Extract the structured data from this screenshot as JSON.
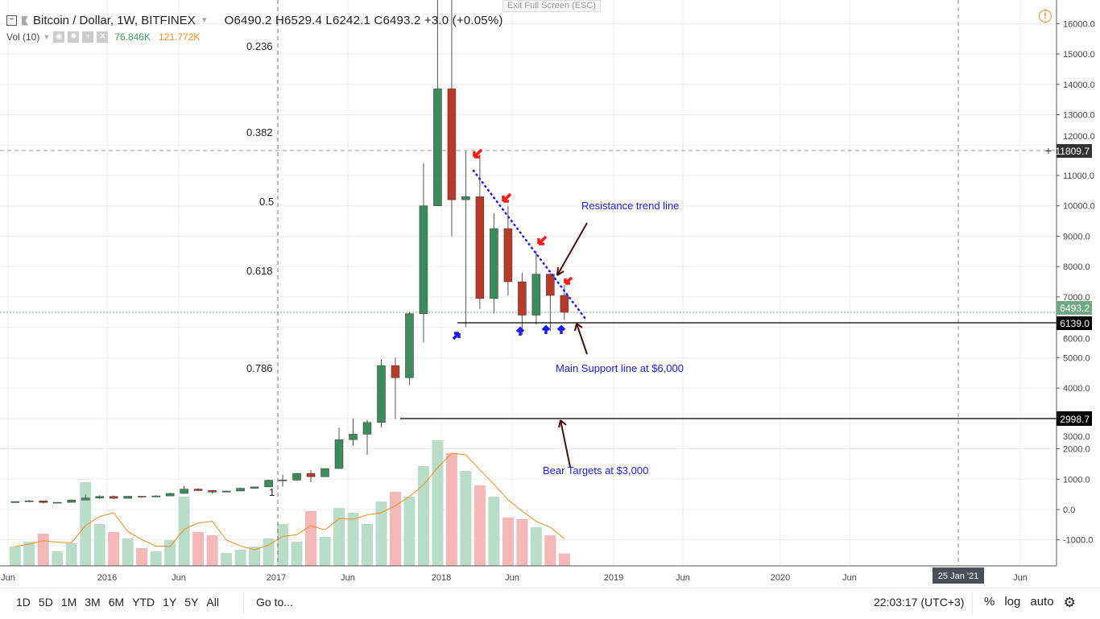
{
  "header": {
    "symbol": "Bitcoin / Dollar, 1W, BITFINEX",
    "ohlc": "O6490.2  H6529.4  L6242.1  C6493.2  +3.0 (+0.05%)",
    "volume_label": "Vol (10)",
    "volume_value": "76.846K",
    "volume_ma_value": "121.772K",
    "exit_fullscreen": "Exit Full Screen (ESC)"
  },
  "colors": {
    "up": "#3d8a5e",
    "down": "#b83a2a",
    "vol_up": "#b9ddc8",
    "vol_down": "#f5b8b8",
    "vol_ma": "#f68a1f",
    "annotation": "#1a1aff",
    "last_price": "#6fa885"
  },
  "annotations": {
    "resistance": "Resistance trend line",
    "support": "Main Support line at $6,000",
    "bear": "Bear Targets at $3,000",
    "fib_levels": [
      "0.236",
      "0.382",
      "0.5",
      "0.618",
      "0.786",
      "1"
    ]
  },
  "price_axis": {
    "ticks": [
      "16000.0",
      "15000.0",
      "14000.0",
      "13000.0",
      "12000.0",
      "11000.0",
      "10000.0",
      "9000.0",
      "8000.0",
      "7000.0",
      "6000.0",
      "5000.0",
      "4000.0",
      "3000.0",
      "2000.0",
      "1000.0",
      "0.0",
      "-1000.0"
    ],
    "last_price": "6493.2",
    "support_label": "6139.0",
    "bear_label": "2998.7",
    "crosshair_label": "11809.7"
  },
  "time_axis": {
    "labels": [
      "Jun",
      "2016",
      "Jun",
      "2017",
      "Jun",
      "2018",
      "Jun",
      "2019",
      "Jun",
      "2020",
      "Jun",
      "Jun"
    ],
    "crosshair_label": "25 Jan '21"
  },
  "toolbar": {
    "ranges": [
      "1D",
      "5D",
      "1M",
      "3M",
      "6M",
      "YTD",
      "1Y",
      "5Y",
      "All"
    ],
    "goto": "Go to...",
    "clock": "22:03:17 (UTC+3)",
    "percent": "%",
    "log": "log",
    "auto": "auto"
  },
  "chart_data": {
    "type": "candlestick",
    "title": "Bitcoin / Dollar, 1W, BITFINEX",
    "ylim": [
      -1500,
      16700
    ],
    "grid": true,
    "columns": [
      "date",
      "open",
      "high",
      "low",
      "close",
      "volume_k"
    ],
    "candles": [
      [
        "2015-06",
        230,
        265,
        220,
        263,
        120
      ],
      [
        "2015-07",
        263,
        315,
        255,
        284,
        150
      ],
      [
        "2015-08",
        284,
        284,
        200,
        230,
        200
      ],
      [
        "2015-09",
        230,
        245,
        225,
        236,
        90
      ],
      [
        "2015-10",
        236,
        330,
        236,
        314,
        140
      ],
      [
        "2015-11",
        314,
        500,
        310,
        377,
        520
      ],
      [
        "2015-12",
        377,
        470,
        350,
        430,
        260
      ],
      [
        "2016-01",
        430,
        460,
        350,
        369,
        210
      ],
      [
        "2016-02",
        369,
        440,
        365,
        437,
        170
      ],
      [
        "2016-03",
        437,
        440,
        400,
        416,
        110
      ],
      [
        "2016-04",
        416,
        470,
        414,
        448,
        90
      ],
      [
        "2016-05",
        448,
        550,
        440,
        530,
        160
      ],
      [
        "2016-06",
        530,
        780,
        520,
        673,
        430
      ],
      [
        "2016-07",
        673,
        700,
        600,
        624,
        210
      ],
      [
        "2016-08",
        624,
        630,
        520,
        575,
        190
      ],
      [
        "2016-09",
        575,
        620,
        570,
        610,
        80
      ],
      [
        "2016-10",
        610,
        720,
        605,
        700,
        100
      ],
      [
        "2016-11",
        700,
        750,
        690,
        745,
        120
      ],
      [
        "2016-12",
        745,
        980,
        745,
        965,
        170
      ],
      [
        "2017-01",
        965,
        1150,
        750,
        970,
        260
      ],
      [
        "2017-02",
        970,
        1200,
        950,
        1190,
        150
      ],
      [
        "2017-03",
        1190,
        1300,
        900,
        1080,
        340
      ],
      [
        "2017-04",
        1080,
        1350,
        1070,
        1350,
        180
      ],
      [
        "2017-05",
        1350,
        2700,
        1350,
        2300,
        360
      ],
      [
        "2017-06",
        2300,
        3000,
        2100,
        2480,
        330
      ],
      [
        "2017-07",
        2480,
        2950,
        1800,
        2870,
        260
      ],
      [
        "2017-08",
        2870,
        4950,
        2700,
        4740,
        400
      ],
      [
        "2017-09",
        4740,
        5000,
        2980,
        4340,
        460
      ],
      [
        "2017-10",
        4340,
        6500,
        4100,
        6450,
        430
      ],
      [
        "2017-11",
        6450,
        11400,
        5500,
        10000,
        620
      ],
      [
        "2017-12",
        10000,
        19800,
        10000,
        13850,
        780
      ],
      [
        "2018-01",
        13850,
        17200,
        9000,
        10200,
        700
      ],
      [
        "2018-02",
        10200,
        11800,
        6000,
        10300,
        590
      ],
      [
        "2018-03",
        10300,
        11700,
        6600,
        6950,
        500
      ],
      [
        "2018-04",
        6950,
        9750,
        6450,
        9250,
        430
      ],
      [
        "2018-05",
        9250,
        10000,
        7050,
        7500,
        300
      ],
      [
        "2018-06",
        7500,
        7800,
        5750,
        6400,
        290
      ],
      [
        "2018-07",
        6400,
        8500,
        6100,
        7750,
        240
      ],
      [
        "2018-08",
        7750,
        7780,
        5880,
        7050,
        190
      ],
      [
        "2018-09",
        7050,
        7400,
        6240,
        6493,
        77
      ]
    ],
    "horizontal_lines": [
      6139.0,
      2998.7
    ],
    "last_price": 6493.2
  }
}
